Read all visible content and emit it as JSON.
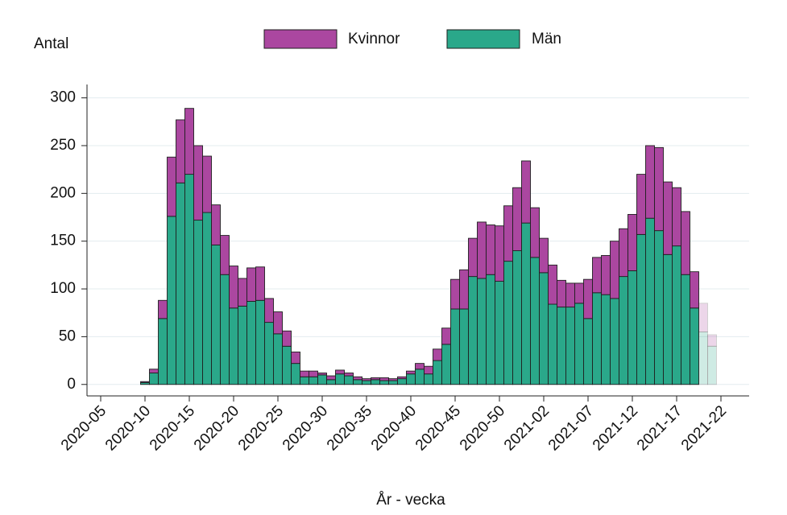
{
  "chart_data": {
    "type": "stacked_bar",
    "ylabel": "Antal",
    "xlabel": "År - vecka",
    "categories": [
      "2020-05",
      null,
      null,
      null,
      null,
      "2020-10",
      null,
      null,
      null,
      null,
      "2020-15",
      null,
      null,
      null,
      null,
      "2020-20",
      null,
      null,
      null,
      null,
      "2020-25",
      null,
      null,
      null,
      null,
      "2020-30",
      null,
      null,
      null,
      null,
      "2020-35",
      null,
      null,
      null,
      null,
      "2020-40",
      null,
      null,
      null,
      null,
      "2020-45",
      null,
      null,
      null,
      null,
      "2020-50",
      null,
      null,
      null,
      null,
      "2021-02",
      null,
      null,
      null,
      null,
      "2021-07",
      null,
      null,
      null,
      null,
      "2021-12",
      null,
      null,
      null,
      null,
      "2021-17",
      null,
      null,
      null,
      null,
      "2021-22"
    ],
    "series": [
      {
        "name": "Kvinnor",
        "color": "#ab47a0",
        "values": [
          null,
          null,
          null,
          null,
          null,
          1,
          4,
          19,
          62,
          66,
          69,
          78,
          59,
          42,
          41,
          44,
          29,
          35,
          35,
          25,
          23,
          16,
          12,
          6,
          6,
          2,
          4,
          4,
          3,
          3,
          2,
          2,
          3,
          2,
          2,
          3,
          6,
          8,
          12,
          17,
          31,
          41,
          40,
          59,
          52,
          58,
          58,
          66,
          65,
          52,
          36,
          41,
          28,
          25,
          21,
          41,
          37,
          41,
          60,
          50,
          59,
          63,
          76,
          87,
          76,
          61,
          66,
          38,
          30,
          12,
          null
        ]
      },
      {
        "name": "Män",
        "color": "#2aa88a",
        "values": [
          null,
          null,
          null,
          null,
          null,
          2,
          12,
          69,
          176,
          211,
          220,
          172,
          180,
          146,
          115,
          80,
          82,
          87,
          88,
          65,
          53,
          40,
          22,
          8,
          8,
          10,
          5,
          11,
          9,
          5,
          4,
          5,
          4,
          4,
          6,
          11,
          16,
          11,
          25,
          42,
          79,
          79,
          113,
          111,
          115,
          108,
          129,
          140,
          169,
          133,
          117,
          84,
          81,
          81,
          85,
          69,
          96,
          94,
          90,
          113,
          119,
          157,
          174,
          161,
          136,
          145,
          115,
          80,
          55,
          40,
          null
        ]
      }
    ],
    "stack_order": [
      "Män",
      "Kvinnor"
    ],
    "faded_last": 2,
    "ylim": [
      -12,
      314
    ],
    "yticks": [
      0,
      50,
      100,
      150,
      200,
      250,
      300
    ],
    "grid": true,
    "legend": "top"
  }
}
